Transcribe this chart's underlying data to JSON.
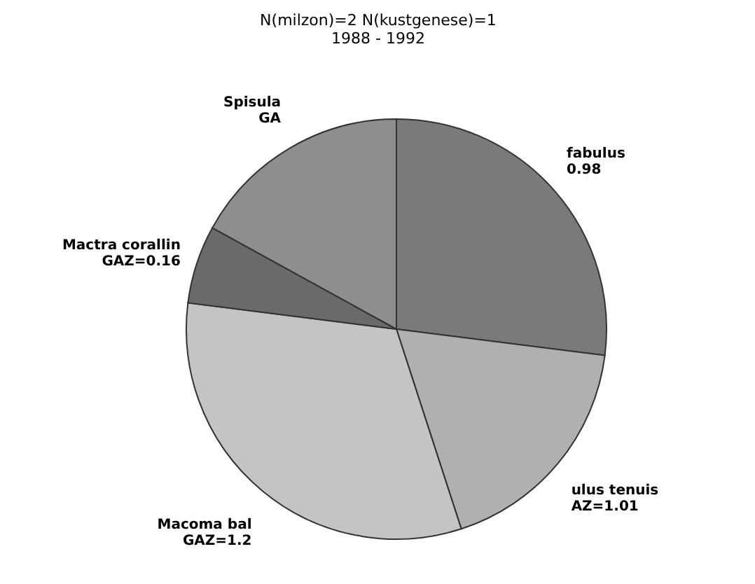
{
  "chart_data": {
    "type": "pie",
    "title": "N(milzon)=2   N(kustgenese)=1",
    "subtitle": "1988 - 1992",
    "categories": [
      "fabulus",
      "ulus tenuis",
      "Macoma bal",
      "Mactra corallin",
      "Spisula"
    ],
    "values": [
      27,
      18,
      32,
      6,
      17
    ],
    "annotations": [
      "0.98",
      "AZ=1.01",
      "GAZ=1.2",
      "GAZ=0.16",
      "GA"
    ],
    "colors": [
      "#7a7a7a",
      "#b0b0b0",
      "#c4c4c4",
      "#6a6a6a",
      "#8e8e8e"
    ]
  }
}
